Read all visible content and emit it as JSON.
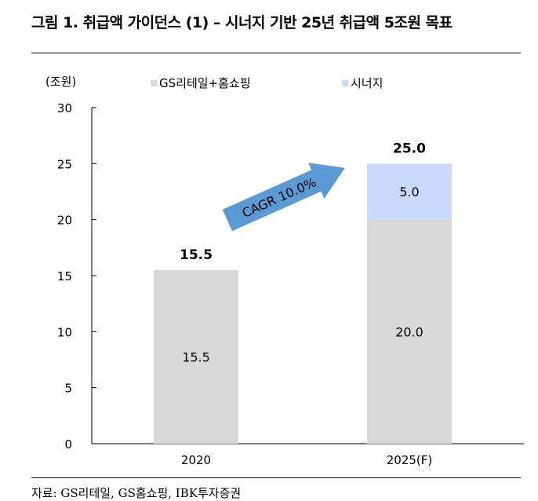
{
  "figure": {
    "title": "그림 1. 취급액 가이던스 (1) – 시너지 기반 25년 취급액 5조원 목표",
    "source": "자료: GS리테일, GS홈쇼핑, IBK투자증권"
  },
  "colors": {
    "base_series": "#d9d9d9",
    "synergy_series": "#c9d9ff",
    "arrow": "#5b9bd5",
    "axis": "#000000"
  },
  "chart_data": {
    "type": "bar",
    "stacked": true,
    "unit_label": "(조원)",
    "categories": [
      "2020",
      "2025(F)"
    ],
    "series": [
      {
        "name": "GS리테일+홈쇼핑",
        "values": [
          15.5,
          20.0
        ],
        "labels": [
          "15.5",
          "20.0"
        ]
      },
      {
        "name": "시너지",
        "values": [
          0,
          5.0
        ],
        "labels": [
          "",
          "5.0"
        ]
      }
    ],
    "totals": [
      15.5,
      25.0
    ],
    "total_labels": [
      "15.5",
      "25.0"
    ],
    "ylim": [
      0,
      30
    ],
    "yticks": [
      0,
      5,
      10,
      15,
      20,
      25,
      30
    ],
    "ytick_labels": [
      "0",
      "5",
      "10",
      "15",
      "20",
      "25",
      "30"
    ],
    "legend_position": "top",
    "grid": false,
    "annotation": {
      "text": "CAGR 10.0%",
      "shape": "arrow",
      "direction": "up-right"
    }
  }
}
